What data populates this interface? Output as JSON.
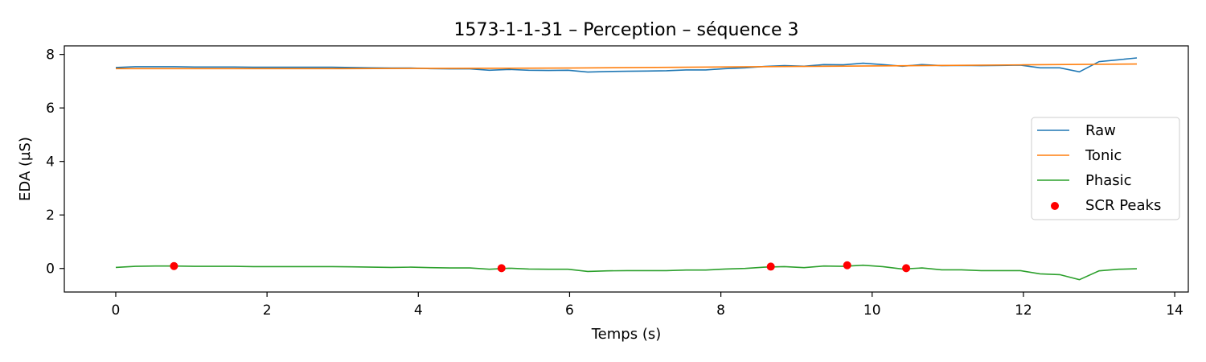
{
  "chart_data": {
    "type": "line",
    "title": "1573-1-1-31 – Perception – séquence 3",
    "xlabel": "Temps (s)",
    "ylabel": "EDA (µS)",
    "xlim": [
      -0.68,
      14.18
    ],
    "ylim": [
      -0.88,
      8.32
    ],
    "xticks": [
      0,
      2,
      4,
      6,
      8,
      10,
      12,
      14
    ],
    "yticks": [
      0,
      2,
      4,
      6,
      8
    ],
    "grid": false,
    "legend_position": "center-right",
    "series": [
      {
        "name": "Raw",
        "color": "#1f77b4",
        "x": [
          0,
          0.26,
          0.52,
          0.78,
          1.04,
          1.3,
          1.56,
          1.82,
          2.08,
          2.34,
          2.6,
          2.86,
          3.12,
          3.38,
          3.64,
          3.9,
          4.16,
          4.42,
          4.68,
          4.94,
          5.2,
          5.46,
          5.72,
          5.98,
          6.24,
          6.5,
          6.76,
          7.02,
          7.28,
          7.54,
          7.8,
          8.06,
          8.32,
          8.58,
          8.84,
          9.1,
          9.36,
          9.62,
          9.88,
          10.14,
          10.4,
          10.66,
          10.92,
          11.18,
          11.44,
          11.7,
          11.96,
          12.22,
          12.48,
          12.74,
          13.0,
          13.26,
          13.5
        ],
        "y": [
          7.51,
          7.54,
          7.54,
          7.54,
          7.53,
          7.53,
          7.53,
          7.52,
          7.52,
          7.52,
          7.52,
          7.52,
          7.51,
          7.5,
          7.49,
          7.49,
          7.47,
          7.46,
          7.46,
          7.41,
          7.44,
          7.41,
          7.4,
          7.41,
          7.34,
          7.36,
          7.37,
          7.38,
          7.39,
          7.42,
          7.42,
          7.47,
          7.5,
          7.55,
          7.58,
          7.56,
          7.62,
          7.61,
          7.67,
          7.62,
          7.56,
          7.62,
          7.58,
          7.59,
          7.58,
          7.59,
          7.6,
          7.5,
          7.5,
          7.35,
          7.73,
          7.8,
          7.87
        ]
      },
      {
        "name": "Tonic",
        "color": "#ff7f0e",
        "x": [
          0,
          3.0,
          6.0,
          9.0,
          12.0,
          13.5
        ],
        "y": [
          7.47,
          7.47,
          7.49,
          7.55,
          7.61,
          7.64
        ]
      },
      {
        "name": "Phasic",
        "color": "#2ca02c",
        "x": [
          0,
          0.26,
          0.52,
          0.78,
          1.04,
          1.3,
          1.56,
          1.82,
          2.08,
          2.34,
          2.6,
          2.86,
          3.12,
          3.38,
          3.64,
          3.9,
          4.16,
          4.42,
          4.68,
          4.94,
          5.2,
          5.46,
          5.72,
          5.98,
          6.24,
          6.5,
          6.76,
          7.02,
          7.28,
          7.54,
          7.8,
          8.06,
          8.32,
          8.58,
          8.84,
          9.1,
          9.36,
          9.62,
          9.88,
          10.14,
          10.4,
          10.66,
          10.92,
          11.18,
          11.44,
          11.7,
          11.96,
          12.22,
          12.48,
          12.74,
          13.0,
          13.26,
          13.5
        ],
        "y": [
          0.04,
          0.08,
          0.09,
          0.09,
          0.08,
          0.08,
          0.08,
          0.07,
          0.07,
          0.07,
          0.07,
          0.07,
          0.06,
          0.05,
          0.04,
          0.05,
          0.03,
          0.02,
          0.02,
          -0.03,
          0.01,
          -0.02,
          -0.03,
          -0.03,
          -0.11,
          -0.09,
          -0.08,
          -0.08,
          -0.08,
          -0.06,
          -0.06,
          -0.02,
          0.0,
          0.05,
          0.07,
          0.03,
          0.09,
          0.08,
          0.12,
          0.07,
          -0.02,
          0.02,
          -0.05,
          -0.05,
          -0.08,
          -0.08,
          -0.08,
          -0.2,
          -0.23,
          -0.42,
          -0.09,
          -0.03,
          -0.01
        ]
      }
    ],
    "scr_peaks": {
      "name": "SCR Peaks",
      "color": "#ff0000",
      "x": [
        0.77,
        5.1,
        8.66,
        9.67,
        10.45
      ],
      "y": [
        0.09,
        0.01,
        0.07,
        0.12,
        0.01
      ]
    }
  }
}
